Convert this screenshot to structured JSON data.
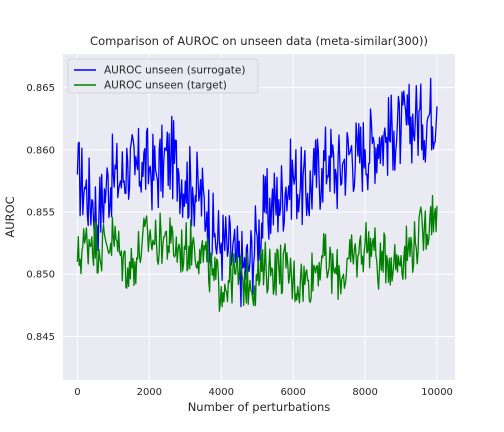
{
  "chart_data": {
    "type": "line",
    "title": "Comparison of AUROC on unseen data (meta-similar(300))",
    "xlabel": "Number of perturbations",
    "ylabel": "AUROC",
    "xlim": [
      -400,
      10500
    ],
    "ylim": [
      0.8415,
      0.8677
    ],
    "xticks": [
      0,
      2000,
      4000,
      6000,
      8000,
      10000
    ],
    "xtick_labels": [
      "0",
      "2000",
      "4000",
      "6000",
      "8000",
      "10000"
    ],
    "yticks": [
      0.845,
      0.85,
      0.855,
      0.86,
      0.865
    ],
    "ytick_labels": [
      "0.845",
      "0.850",
      "0.855",
      "0.860",
      "0.865"
    ],
    "grid": true,
    "legend_position": "top-left",
    "background": "#EAEAF2",
    "series": [
      {
        "name": "AUROC unseen (surrogate)",
        "color": "#0000FF",
        "x": [
          0,
          200,
          400,
          600,
          800,
          1000,
          1200,
          1400,
          1600,
          1800,
          2000,
          2200,
          2400,
          2600,
          2800,
          3000,
          3200,
          3400,
          3600,
          3800,
          4000,
          4200,
          4400,
          4600,
          4800,
          5000,
          5200,
          5400,
          5600,
          5800,
          6000,
          6200,
          6400,
          6600,
          6800,
          7000,
          7200,
          7400,
          7600,
          7800,
          8000,
          8200,
          8400,
          8600,
          8800,
          9000,
          9200,
          9400,
          9600,
          9800,
          10000
        ],
        "y": [
          0.858,
          0.857,
          0.856,
          0.855,
          0.857,
          0.858,
          0.8575,
          0.859,
          0.858,
          0.859,
          0.8585,
          0.858,
          0.859,
          0.8595,
          0.8585,
          0.8575,
          0.857,
          0.8565,
          0.855,
          0.853,
          0.8525,
          0.852,
          0.851,
          0.8505,
          0.851,
          0.853,
          0.855,
          0.8555,
          0.856,
          0.857,
          0.858,
          0.857,
          0.8565,
          0.858,
          0.8585,
          0.8595,
          0.858,
          0.859,
          0.86,
          0.8595,
          0.86,
          0.8605,
          0.861,
          0.861,
          0.8615,
          0.8615,
          0.862,
          0.8625,
          0.862,
          0.863,
          0.8635
        ]
      },
      {
        "name": "AUROC unseen (target)",
        "color": "#008000",
        "x": [
          0,
          200,
          400,
          600,
          800,
          1000,
          1200,
          1400,
          1600,
          1800,
          2000,
          2200,
          2400,
          2600,
          2800,
          3000,
          3200,
          3400,
          3600,
          3800,
          4000,
          4200,
          4400,
          4600,
          4800,
          5000,
          5200,
          5400,
          5600,
          5800,
          6000,
          6200,
          6400,
          6600,
          6800,
          7000,
          7200,
          7400,
          7600,
          7800,
          8000,
          8200,
          8400,
          8600,
          8800,
          9000,
          9200,
          9400,
          9600,
          9800,
          10000
        ],
        "y": [
          0.851,
          0.8525,
          0.853,
          0.852,
          0.8525,
          0.853,
          0.8515,
          0.8505,
          0.851,
          0.8525,
          0.853,
          0.8525,
          0.853,
          0.8525,
          0.852,
          0.852,
          0.8525,
          0.852,
          0.851,
          0.8495,
          0.849,
          0.8495,
          0.85,
          0.8495,
          0.8495,
          0.8495,
          0.8505,
          0.8505,
          0.8505,
          0.8505,
          0.8495,
          0.8495,
          0.8495,
          0.8505,
          0.8515,
          0.8505,
          0.85,
          0.85,
          0.851,
          0.8515,
          0.8525,
          0.8525,
          0.8505,
          0.8515,
          0.851,
          0.8515,
          0.852,
          0.8525,
          0.8535,
          0.8545,
          0.8555
        ]
      }
    ]
  }
}
